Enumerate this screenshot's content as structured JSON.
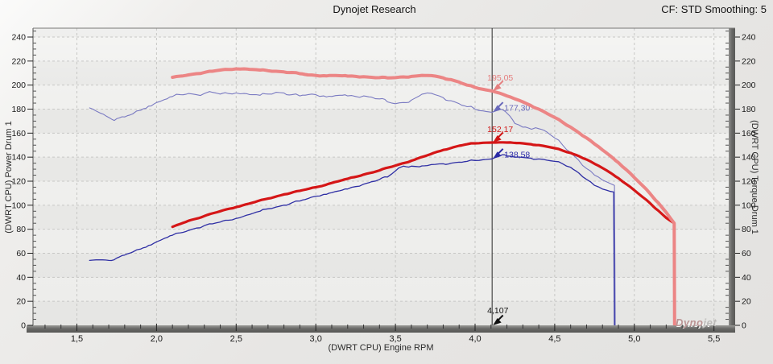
{
  "header": {
    "title": "Dynojet Research",
    "correction_label": "CF: STD Smoothing: 5"
  },
  "axes": {
    "x_title": "(DWRT CPU) Engine RPM",
    "y_left_title": "(DWRT CPU) Power Drum 1",
    "y_right_title": "(DWRT CPU) Torque Drum 1"
  },
  "watermark": {
    "part1": "Dyno",
    "part2": "jet"
  },
  "chart_data": {
    "type": "line",
    "title": "Dynojet Research",
    "xlabel": "(DWRT CPU) Engine RPM",
    "ylabel_left": "(DWRT CPU) Power Drum 1",
    "ylabel_right": "(DWRT CPU) Torque Drum 1",
    "xlim": [
      1.22,
      5.59
    ],
    "ylim": [
      0,
      247
    ],
    "grid": "dashed",
    "x_major_ticks": [
      {
        "v": 1.5,
        "label": "1,5"
      },
      {
        "v": 2.0,
        "label": "2,0"
      },
      {
        "v": 2.5,
        "label": "2,5"
      },
      {
        "v": 3.0,
        "label": "3,0"
      },
      {
        "v": 3.5,
        "label": "3,5"
      },
      {
        "v": 4.0,
        "label": "4,0"
      },
      {
        "v": 4.5,
        "label": "4,5"
      },
      {
        "v": 5.0,
        "label": "5,0"
      },
      {
        "v": 5.5,
        "label": "5,5"
      }
    ],
    "x_minor_step": 0.1,
    "y_major_step": 20,
    "y_major_max": 240,
    "y_minor_step": 5,
    "band_colors": [
      "#e7e7e5",
      "#efefed"
    ],
    "series": [
      {
        "name": "blue-run-torque",
        "color": "#7a7ac2",
        "width": 1.1,
        "jitter": 1.3,
        "points": [
          [
            1.58,
            181
          ],
          [
            1.6,
            180
          ],
          [
            1.65,
            176.5
          ],
          [
            1.7,
            173
          ],
          [
            1.72,
            171.5
          ],
          [
            1.75,
            172
          ],
          [
            1.8,
            173.5
          ],
          [
            1.85,
            176
          ],
          [
            1.9,
            179
          ],
          [
            1.95,
            182.5
          ],
          [
            2.0,
            185.5
          ],
          [
            2.05,
            188
          ],
          [
            2.1,
            190.5
          ],
          [
            2.15,
            192
          ],
          [
            2.2,
            193
          ],
          [
            2.25,
            192
          ],
          [
            2.3,
            193
          ],
          [
            2.35,
            194
          ],
          [
            2.4,
            192.5
          ],
          [
            2.45,
            193
          ],
          [
            2.5,
            193.5
          ],
          [
            2.55,
            193
          ],
          [
            2.6,
            192
          ],
          [
            2.65,
            191.5
          ],
          [
            2.7,
            192.5
          ],
          [
            2.75,
            194
          ],
          [
            2.8,
            193.5
          ],
          [
            2.85,
            192
          ],
          [
            2.9,
            191
          ],
          [
            2.95,
            192
          ],
          [
            3.0,
            192
          ],
          [
            3.05,
            191
          ],
          [
            3.1,
            190.5
          ],
          [
            3.15,
            191.5
          ],
          [
            3.2,
            191
          ],
          [
            3.25,
            190.5
          ],
          [
            3.3,
            191
          ],
          [
            3.35,
            190
          ],
          [
            3.4,
            188.5
          ],
          [
            3.45,
            186
          ],
          [
            3.5,
            184.5
          ],
          [
            3.55,
            185.5
          ],
          [
            3.6,
            187.5
          ],
          [
            3.65,
            191
          ],
          [
            3.7,
            193.5
          ],
          [
            3.75,
            192
          ],
          [
            3.8,
            189.5
          ],
          [
            3.85,
            187
          ],
          [
            3.9,
            184.5
          ],
          [
            3.95,
            182
          ],
          [
            4.0,
            180
          ],
          [
            4.05,
            178.5
          ],
          [
            4.107,
            177.3
          ],
          [
            4.13,
            179
          ],
          [
            4.16,
            180
          ],
          [
            4.19,
            178
          ],
          [
            4.22,
            174
          ],
          [
            4.25,
            168
          ],
          [
            4.3,
            165
          ],
          [
            4.33,
            164.5
          ],
          [
            4.38,
            164.5
          ],
          [
            4.42,
            163
          ],
          [
            4.45,
            161
          ],
          [
            4.5,
            156
          ],
          [
            4.55,
            150
          ],
          [
            4.6,
            144
          ],
          [
            4.65,
            137.5
          ],
          [
            4.7,
            130.5
          ],
          [
            4.75,
            125
          ],
          [
            4.8,
            121
          ],
          [
            4.85,
            118
          ],
          [
            4.875,
            116.5
          ],
          [
            4.88,
            0
          ]
        ]
      },
      {
        "name": "blue-run-power",
        "color": "#2e2ea4",
        "width": 1.3,
        "jitter": 0.8,
        "points": [
          [
            1.58,
            54
          ],
          [
            1.62,
            54.5
          ],
          [
            1.66,
            54.5
          ],
          [
            1.7,
            54
          ],
          [
            1.75,
            56
          ],
          [
            1.8,
            58.5
          ],
          [
            1.85,
            61
          ],
          [
            1.9,
            63.5
          ],
          [
            1.95,
            66.5
          ],
          [
            2.0,
            69.5
          ],
          [
            2.05,
            72.5
          ],
          [
            2.1,
            75
          ],
          [
            2.15,
            77
          ],
          [
            2.2,
            79
          ],
          [
            2.25,
            81
          ],
          [
            2.3,
            83
          ],
          [
            2.35,
            84.5
          ],
          [
            2.4,
            86
          ],
          [
            2.45,
            87.5
          ],
          [
            2.5,
            89
          ],
          [
            2.55,
            91
          ],
          [
            2.6,
            93
          ],
          [
            2.65,
            95
          ],
          [
            2.7,
            97
          ],
          [
            2.75,
            98.5
          ],
          [
            2.8,
            100
          ],
          [
            2.85,
            102
          ],
          [
            2.9,
            103.5
          ],
          [
            2.95,
            105.5
          ],
          [
            3.0,
            107.5
          ],
          [
            3.05,
            109
          ],
          [
            3.1,
            110.5
          ],
          [
            3.15,
            112
          ],
          [
            3.2,
            113.5
          ],
          [
            3.25,
            115.5
          ],
          [
            3.3,
            117.5
          ],
          [
            3.35,
            119.5
          ],
          [
            3.4,
            121.5
          ],
          [
            3.45,
            123.5
          ],
          [
            3.5,
            128.5
          ],
          [
            3.52,
            131
          ],
          [
            3.55,
            132.5
          ],
          [
            3.6,
            132.5
          ],
          [
            3.65,
            132
          ],
          [
            3.7,
            133
          ],
          [
            3.75,
            134
          ],
          [
            3.8,
            134.5
          ],
          [
            3.85,
            135
          ],
          [
            3.9,
            135.8
          ],
          [
            3.95,
            136.5
          ],
          [
            4.0,
            137.2
          ],
          [
            4.05,
            137.9
          ],
          [
            4.107,
            138.58
          ],
          [
            4.13,
            140
          ],
          [
            4.17,
            142
          ],
          [
            4.2,
            141
          ],
          [
            4.25,
            140
          ],
          [
            4.3,
            139.8
          ],
          [
            4.35,
            139.2
          ],
          [
            4.4,
            138.5
          ],
          [
            4.45,
            137.5
          ],
          [
            4.5,
            136.5
          ],
          [
            4.55,
            134.5
          ],
          [
            4.6,
            131.5
          ],
          [
            4.65,
            127
          ],
          [
            4.7,
            121.5
          ],
          [
            4.75,
            116.5
          ],
          [
            4.8,
            113.5
          ],
          [
            4.85,
            111.5
          ],
          [
            4.87,
            111
          ],
          [
            4.875,
            0
          ]
        ]
      },
      {
        "name": "red-run-power",
        "color": "#d51617",
        "width": 3.2,
        "jitter": 0.35,
        "points": [
          [
            2.1,
            82
          ],
          [
            2.15,
            84.5
          ],
          [
            2.2,
            87
          ],
          [
            2.3,
            91
          ],
          [
            2.4,
            95
          ],
          [
            2.5,
            98.5
          ],
          [
            2.6,
            102
          ],
          [
            2.7,
            105.5
          ],
          [
            2.8,
            109
          ],
          [
            2.9,
            112
          ],
          [
            3.0,
            115
          ],
          [
            3.1,
            118.5
          ],
          [
            3.2,
            122
          ],
          [
            3.3,
            125.5
          ],
          [
            3.4,
            129
          ],
          [
            3.5,
            133
          ],
          [
            3.6,
            137
          ],
          [
            3.7,
            141.5
          ],
          [
            3.8,
            146
          ],
          [
            3.9,
            149.5
          ],
          [
            3.95,
            150.8
          ],
          [
            4.0,
            151.5
          ],
          [
            4.05,
            152
          ],
          [
            4.107,
            152.17
          ],
          [
            4.15,
            152.3
          ],
          [
            4.2,
            152.2
          ],
          [
            4.3,
            151.5
          ],
          [
            4.35,
            150.8
          ],
          [
            4.4,
            150
          ],
          [
            4.45,
            148.8
          ],
          [
            4.5,
            147.5
          ],
          [
            4.55,
            145.5
          ],
          [
            4.6,
            143.5
          ],
          [
            4.65,
            141
          ],
          [
            4.7,
            138
          ],
          [
            4.75,
            134.5
          ],
          [
            4.8,
            131
          ],
          [
            4.85,
            127
          ],
          [
            4.9,
            122.5
          ],
          [
            4.95,
            117.5
          ],
          [
            5.0,
            112.5
          ],
          [
            5.05,
            107
          ],
          [
            5.1,
            101.5
          ],
          [
            5.15,
            95.5
          ],
          [
            5.2,
            89.5
          ],
          [
            5.25,
            85
          ]
        ]
      },
      {
        "name": "red-run-torque",
        "color": "#ec8585",
        "width": 4,
        "jitter": 0.45,
        "points": [
          [
            2.1,
            206.5
          ],
          [
            2.15,
            207.5
          ],
          [
            2.2,
            208.5
          ],
          [
            2.25,
            209.5
          ],
          [
            2.3,
            210.5
          ],
          [
            2.35,
            211.5
          ],
          [
            2.4,
            212.5
          ],
          [
            2.45,
            213
          ],
          [
            2.5,
            213.5
          ],
          [
            2.55,
            213.5
          ],
          [
            2.6,
            213
          ],
          [
            2.65,
            212.5
          ],
          [
            2.7,
            212
          ],
          [
            2.75,
            211.5
          ],
          [
            2.8,
            211
          ],
          [
            2.85,
            210.5
          ],
          [
            2.9,
            209.5
          ],
          [
            2.95,
            208.5
          ],
          [
            3.0,
            208
          ],
          [
            3.05,
            207.8
          ],
          [
            3.1,
            208
          ],
          [
            3.15,
            207.8
          ],
          [
            3.2,
            207.5
          ],
          [
            3.25,
            207.2
          ],
          [
            3.3,
            207
          ],
          [
            3.35,
            206.5
          ],
          [
            3.4,
            206.2
          ],
          [
            3.45,
            206
          ],
          [
            3.5,
            206.2
          ],
          [
            3.55,
            206.8
          ],
          [
            3.6,
            207.2
          ],
          [
            3.65,
            207.8
          ],
          [
            3.7,
            208
          ],
          [
            3.75,
            207.5
          ],
          [
            3.8,
            206
          ],
          [
            3.85,
            204.5
          ],
          [
            3.9,
            202.5
          ],
          [
            3.95,
            200
          ],
          [
            4.0,
            198
          ],
          [
            4.05,
            196.5
          ],
          [
            4.107,
            195.05
          ],
          [
            4.15,
            193.5
          ],
          [
            4.2,
            191
          ],
          [
            4.25,
            188.5
          ],
          [
            4.3,
            186
          ],
          [
            4.35,
            183
          ],
          [
            4.4,
            180
          ],
          [
            4.45,
            176.5
          ],
          [
            4.5,
            173
          ],
          [
            4.55,
            169
          ],
          [
            4.6,
            165
          ],
          [
            4.65,
            160.5
          ],
          [
            4.7,
            156
          ],
          [
            4.75,
            151
          ],
          [
            4.8,
            146
          ],
          [
            4.85,
            141
          ],
          [
            4.9,
            135.5
          ],
          [
            4.95,
            129.5
          ],
          [
            5.0,
            123
          ],
          [
            5.05,
            116.5
          ],
          [
            5.1,
            109.5
          ],
          [
            5.15,
            102
          ],
          [
            5.2,
            94
          ],
          [
            5.25,
            85
          ],
          [
            5.253,
            0
          ]
        ]
      }
    ],
    "cursor": {
      "rpm": 4.107,
      "rpm_label": "4,107",
      "markers": [
        {
          "series": "red-run-torque",
          "label": "195,05",
          "value": 195.05,
          "color": "#e57f7f",
          "placement": "above",
          "behind": false
        },
        {
          "series": "blue-run-torque",
          "label": "177,30",
          "value": 177.3,
          "color": "#6a6abb",
          "placement": "right",
          "behind": true
        },
        {
          "series": "red-run-power",
          "label": "152,17",
          "value": 152.17,
          "color": "#d01616",
          "placement": "above",
          "behind": false
        },
        {
          "series": "blue-run-power",
          "label": "138,58",
          "value": 138.58,
          "color": "#2a2aa6",
          "placement": "right",
          "behind": false
        }
      ]
    }
  }
}
